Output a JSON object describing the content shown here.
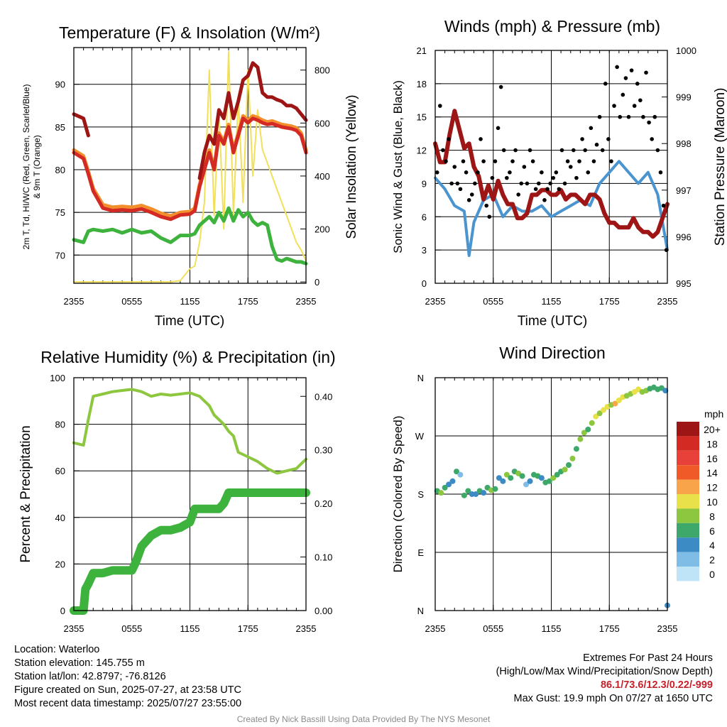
{
  "panels": {
    "temp": {
      "title": "Temperature (F) & Insolation (W/m²)",
      "ylabel_left_line1": "2m T, Td, HI/WC (Red, Green, Scarlet/Blue)",
      "ylabel_left_line2": "& 9m T (Orange)",
      "ylabel_right": "Solar Insolation (Yellow)",
      "xlabel": "Time (UTC)"
    },
    "wind": {
      "title": "Winds (mph) & Pressure (mb)",
      "ylabel_left": "Sonic Wind & Gust (Blue, Black)",
      "ylabel_right": "Station Pressure (Maroon)",
      "xlabel": "Time (UTC)"
    },
    "rh": {
      "title": "Relative Humidity (%) & Precipitation (in)",
      "ylabel_left": "Percent & Precipitation"
    },
    "dir": {
      "title": "Wind Direction",
      "ylabel_left": "Direction (Colored By Speed)",
      "legend_title": "mph"
    }
  },
  "info_left": {
    "location": "Location: Waterloo",
    "elevation": "Station elevation: 145.755 m",
    "latlon": "Station lat/lon: 42.8797; -76.8126",
    "created": "Figure created on Sun, 2025-07-27, at 23:58 UTC",
    "recent": "Most recent data timestamp: 2025/07/27 23:55:00"
  },
  "info_right": {
    "line1": "Extremes For Past 24 Hours",
    "line2": "(High/Low/Max Wind/Precipitation/Snow Depth)",
    "values": "86.1/73.6/12.3/0.22/-999",
    "gust": "Max Gust: 19.9 mph On 07/27 at 1650 UTC"
  },
  "credit": "Created By Nick Bassill Using Data Provided By The NYS Mesonet",
  "chart_data": [
    {
      "id": "temp",
      "type": "line",
      "x_ticks": [
        "2355",
        "0555",
        "1155",
        "1755",
        "2355"
      ],
      "x": [
        0,
        1,
        1.5,
        2,
        3,
        4,
        5,
        6,
        7,
        8,
        9,
        10,
        11,
        12,
        12.5,
        13,
        13.5,
        14,
        14.5,
        15,
        15.5,
        16,
        16.5,
        17,
        17.5,
        18,
        18.5,
        19,
        19.5,
        20,
        20.5,
        21,
        21.5,
        22,
        22.5,
        23,
        23.5,
        24
      ],
      "ylim_left": [
        66.7,
        94.3
      ],
      "yticks_left": [
        70,
        75,
        80,
        85,
        90
      ],
      "ylim_right": [
        -5,
        885
      ],
      "yticks_right": [
        0,
        200,
        400,
        600,
        800
      ],
      "series": [
        {
          "name": "Red",
          "color": "#d42a24",
          "axis": "left",
          "values": [
            82,
            81.3,
            79.5,
            77.5,
            75.5,
            75.2,
            75.3,
            75.2,
            75.4,
            75,
            74.5,
            74.2,
            74.7,
            74.8,
            75.2,
            78,
            80,
            82,
            80,
            84,
            83,
            85,
            82,
            84,
            86,
            85.5,
            86,
            85.8,
            85.5,
            85.3,
            85.4,
            85.2,
            85,
            84.9,
            84.8,
            84.6,
            84,
            82
          ]
        },
        {
          "name": "Orange",
          "color": "#f28e2b",
          "axis": "left",
          "values": [
            82.3,
            81.6,
            79.8,
            77.8,
            75.9,
            75.6,
            75.7,
            75.6,
            75.8,
            75.4,
            74.9,
            74.6,
            75,
            75.1,
            75.5,
            78.3,
            80.3,
            82.3,
            80.3,
            84.3,
            83.3,
            85.3,
            82.3,
            84.3,
            86.3,
            85.8,
            86.3,
            86.1,
            85.8,
            85.6,
            85.7,
            85.5,
            85.3,
            85.2,
            85.1,
            84.9,
            84.3,
            82.3
          ]
        },
        {
          "name": "Scarlet",
          "color": "#9e1515",
          "axis": "left",
          "values": [
            86.5,
            86,
            84,
            null,
            null,
            null,
            null,
            null,
            null,
            null,
            null,
            null,
            null,
            null,
            null,
            79,
            82,
            84,
            83,
            87,
            86,
            89,
            86,
            88,
            90.5,
            91,
            92.5,
            92,
            89,
            88.5,
            88.5,
            88.2,
            88,
            87.5,
            87.5,
            87.2,
            86.5,
            85.8
          ]
        },
        {
          "name": "Green",
          "color": "#3db33d",
          "axis": "left",
          "values": [
            71.8,
            71.5,
            72.8,
            73,
            72.8,
            73,
            72.6,
            73,
            72.6,
            72.8,
            72,
            71.5,
            72.3,
            72.3,
            72.5,
            73.5,
            74,
            74.5,
            73.8,
            75,
            74,
            75.5,
            74,
            75.3,
            74.5,
            75,
            74,
            73.5,
            73.8,
            73.5,
            71,
            69.5,
            69.3,
            69.6,
            69.4,
            69.2,
            69.2,
            69
          ]
        },
        {
          "name": "Yellow",
          "color": "#f2e05a",
          "axis": "right",
          "values": [
            0,
            0,
            0,
            0,
            0,
            0,
            0,
            0,
            0,
            0,
            0,
            0,
            5,
            50,
            60,
            150,
            300,
            800,
            250,
            650,
            200,
            870,
            250,
            700,
            300,
            800,
            400,
            650,
            500,
            450,
            400,
            350,
            300,
            250,
            200,
            150,
            120,
            80
          ]
        }
      ]
    },
    {
      "id": "wind",
      "type": "line",
      "x_ticks": [
        "2355",
        "0555",
        "1155",
        "1755",
        "2355"
      ],
      "ylim_left": [
        0,
        21
      ],
      "yticks_left": [
        0,
        3,
        6,
        9,
        12,
        15,
        18,
        21
      ],
      "ylim_right": [
        995,
        1000
      ],
      "yticks_right": [
        995,
        996,
        997,
        998,
        999,
        1000
      ],
      "series": [
        {
          "name": "Blue",
          "color": "#4a94cf",
          "axis": "left",
          "x": [
            0,
            1,
            2,
            3,
            3.5,
            4,
            5,
            6,
            7,
            8,
            9,
            10,
            11,
            12,
            13,
            14,
            15,
            16,
            17,
            18,
            19,
            20,
            21,
            22,
            23,
            24
          ],
          "values": [
            9.5,
            8.5,
            7,
            6.5,
            2.5,
            5.5,
            7.5,
            8,
            6,
            7,
            6.5,
            6.5,
            7,
            6,
            6.5,
            7,
            7.5,
            7,
            9,
            10,
            11,
            10,
            9,
            10,
            8,
            3
          ]
        },
        {
          "name": "Black",
          "color": "#000000",
          "axis": "left",
          "x": [
            0.2,
            0.5,
            0.8,
            1.1,
            1.4,
            1.7,
            2.0,
            2.3,
            2.6,
            2.9,
            3.2,
            3.5,
            3.8,
            4.1,
            4.4,
            4.7,
            5.0,
            5.3,
            5.6,
            5.9,
            6.2,
            6.5,
            6.8,
            7.1,
            7.4,
            7.7,
            8.0,
            8.3,
            8.6,
            8.9,
            9.2,
            9.5,
            9.8,
            10.1,
            10.4,
            10.7,
            11.0,
            11.3,
            11.6,
            11.9,
            12.2,
            12.5,
            12.8,
            13.1,
            13.4,
            13.7,
            14.0,
            14.3,
            14.6,
            14.9,
            15.2,
            15.5,
            15.8,
            16.1,
            16.4,
            16.7,
            17.0,
            17.3,
            17.6,
            17.9,
            18.2,
            18.5,
            18.8,
            19.1,
            19.4,
            19.7,
            20.0,
            20.3,
            20.6,
            20.9,
            21.2,
            21.5,
            21.8,
            22.1,
            22.4,
            22.7,
            23.0,
            23.3,
            23.6,
            23.9
          ],
          "values": [
            10,
            16,
            12,
            11,
            13,
            9,
            10.5,
            9,
            8.5,
            11,
            10,
            7.5,
            8,
            9,
            10,
            13,
            11,
            7,
            6,
            9.5,
            11,
            14,
            17.7,
            12,
            9.5,
            10,
            11,
            12,
            8,
            9,
            10.5,
            9,
            12,
            11,
            8.5,
            9,
            10,
            7.5,
            8.5,
            9,
            9.5,
            10,
            8.5,
            12,
            9,
            11,
            10.5,
            12,
            9.5,
            11,
            13,
            12,
            10,
            14,
            11,
            12.5,
            15,
            12,
            18,
            13,
            11,
            16,
            19.5,
            15,
            17,
            18.5,
            15,
            19.2,
            16,
            18,
            16.5,
            15,
            19,
            14.5,
            13,
            15,
            12,
            10,
            7,
            3
          ]
        },
        {
          "name": "Maroon",
          "color": "#9e1515",
          "axis": "right",
          "x": [
            0,
            0.5,
            1,
            1.5,
            2,
            2.5,
            3,
            3.5,
            4,
            4.5,
            5,
            5.5,
            6,
            6.5,
            7,
            7.5,
            8,
            8.5,
            9,
            9.5,
            10,
            10.5,
            11,
            11.5,
            12,
            12.5,
            13,
            13.5,
            14,
            14.5,
            15,
            15.5,
            16,
            16.5,
            17,
            17.5,
            18,
            18.5,
            19,
            19.5,
            20,
            20.5,
            21,
            21.5,
            22,
            22.5,
            23,
            23.5,
            24
          ],
          "values": [
            998,
            997.6,
            997.6,
            998.2,
            998.7,
            998.3,
            997.9,
            998,
            997.5,
            997.3,
            996.8,
            997.1,
            996.8,
            997.2,
            996.9,
            996.7,
            996.7,
            996.4,
            996.4,
            996.5,
            996.9,
            996.9,
            997,
            997,
            996.9,
            996.9,
            997,
            996.8,
            996.9,
            996.9,
            996.8,
            996.7,
            996.9,
            996.9,
            996.8,
            996.5,
            996.3,
            996.3,
            996.2,
            996.2,
            996.2,
            996.4,
            996.2,
            996.1,
            996.1,
            996,
            996.1,
            996.4,
            996.7
          ]
        }
      ]
    },
    {
      "id": "rh",
      "type": "line",
      "x_ticks": [
        "2355",
        "0555",
        "1155",
        "1755",
        "2355"
      ],
      "ylim_left": [
        0,
        100
      ],
      "yticks_left": [
        0,
        20,
        40,
        60,
        80,
        100
      ],
      "ylim_right": [
        0,
        0.4348
      ],
      "yticks_right": [
        "0.00",
        "0.10",
        "0.20",
        "0.30",
        "0.40"
      ],
      "series": [
        {
          "name": "RH",
          "color": "#8dc63f",
          "axis": "left",
          "x": [
            0,
            1,
            1.5,
            2,
            3,
            4,
            5,
            6,
            7,
            8,
            9,
            10,
            11,
            12,
            13,
            14,
            14.5,
            15,
            15.5,
            16,
            16.5,
            17,
            18,
            19,
            20,
            21,
            22,
            23,
            24
          ],
          "values": [
            72,
            71,
            82,
            92,
            93,
            94,
            94.5,
            95,
            94,
            92,
            93,
            92.5,
            93,
            93.5,
            92,
            88,
            84,
            82,
            80,
            77,
            75,
            68,
            66,
            64,
            61,
            59,
            60,
            61,
            65
          ]
        },
        {
          "name": "Precipitation",
          "color": "#3db33d",
          "axis": "right",
          "x": [
            0,
            1,
            1.2,
            1.5,
            2,
            3,
            4,
            5,
            6,
            6.4,
            7,
            7.5,
            8,
            9,
            10,
            11,
            12,
            12.5,
            13,
            14,
            15,
            15.5,
            16,
            17,
            18,
            19,
            20,
            21,
            22,
            23,
            24
          ],
          "values": [
            0,
            0,
            0.04,
            0.05,
            0.07,
            0.07,
            0.075,
            0.075,
            0.075,
            0.09,
            0.12,
            0.13,
            0.14,
            0.15,
            0.15,
            0.155,
            0.165,
            0.19,
            0.19,
            0.19,
            0.19,
            0.2,
            0.22,
            0.22,
            0.22,
            0.22,
            0.22,
            0.22,
            0.22,
            0.22,
            0.22
          ]
        }
      ]
    },
    {
      "id": "dir",
      "type": "scatter",
      "x_ticks": [
        "2355",
        "0555",
        "1155",
        "1755",
        "2355"
      ],
      "ylim": [
        0,
        360
      ],
      "yticks": [
        "N",
        "E",
        "S",
        "W",
        "N"
      ],
      "legend": {
        "labels": [
          "20+",
          "18",
          "16",
          "14",
          "12",
          "10",
          "8",
          "6",
          "4",
          "2",
          "0"
        ],
        "colors": [
          "#9e1515",
          "#d42a24",
          "#e8413a",
          "#f05a28",
          "#f7a44a",
          "#e8e14a",
          "#8dc63f",
          "#3da86a",
          "#3d8bc4",
          "#7fbde6",
          "#bfe3f7"
        ]
      },
      "x": [
        0.2,
        0.6,
        1.0,
        1.4,
        1.8,
        2.2,
        2.6,
        3.0,
        3.4,
        3.8,
        4.2,
        4.6,
        5.0,
        5.4,
        5.8,
        6.2,
        6.6,
        7.0,
        7.4,
        7.8,
        8.2,
        8.6,
        9.0,
        9.4,
        9.8,
        10.2,
        10.6,
        11.0,
        11.4,
        11.8,
        12.2,
        12.6,
        13.0,
        13.4,
        13.8,
        14.2,
        14.6,
        15.0,
        15.4,
        15.8,
        16.2,
        16.6,
        17.0,
        17.4,
        17.8,
        18.2,
        18.6,
        19.0,
        19.4,
        19.8,
        20.2,
        20.6,
        21.0,
        21.4,
        21.8,
        22.2,
        22.6,
        23.0,
        23.4,
        23.8,
        24.0
      ],
      "directions": [
        185,
        182,
        190,
        195,
        200,
        215,
        210,
        178,
        185,
        180,
        180,
        185,
        182,
        190,
        186,
        188,
        205,
        200,
        210,
        205,
        215,
        212,
        208,
        195,
        200,
        210,
        208,
        205,
        198,
        200,
        205,
        210,
        215,
        218,
        225,
        235,
        250,
        265,
        275,
        280,
        290,
        300,
        305,
        310,
        315,
        318,
        320,
        325,
        330,
        332,
        335,
        338,
        342,
        338,
        340,
        343,
        345,
        342,
        344,
        340,
        8
      ],
      "speeds": [
        7,
        8,
        6,
        5,
        4,
        6,
        3,
        7,
        6,
        5,
        4,
        6,
        5,
        7,
        8,
        6,
        4,
        5,
        9,
        7,
        6,
        8,
        7,
        3,
        4,
        6,
        7,
        5,
        6,
        7,
        8,
        6,
        7,
        9,
        6,
        8,
        7,
        8,
        9,
        7,
        8,
        10,
        9,
        11,
        10,
        8,
        12,
        11,
        10,
        9,
        8,
        11,
        10,
        9,
        8,
        7,
        7,
        6,
        6,
        5,
        4
      ]
    }
  ]
}
